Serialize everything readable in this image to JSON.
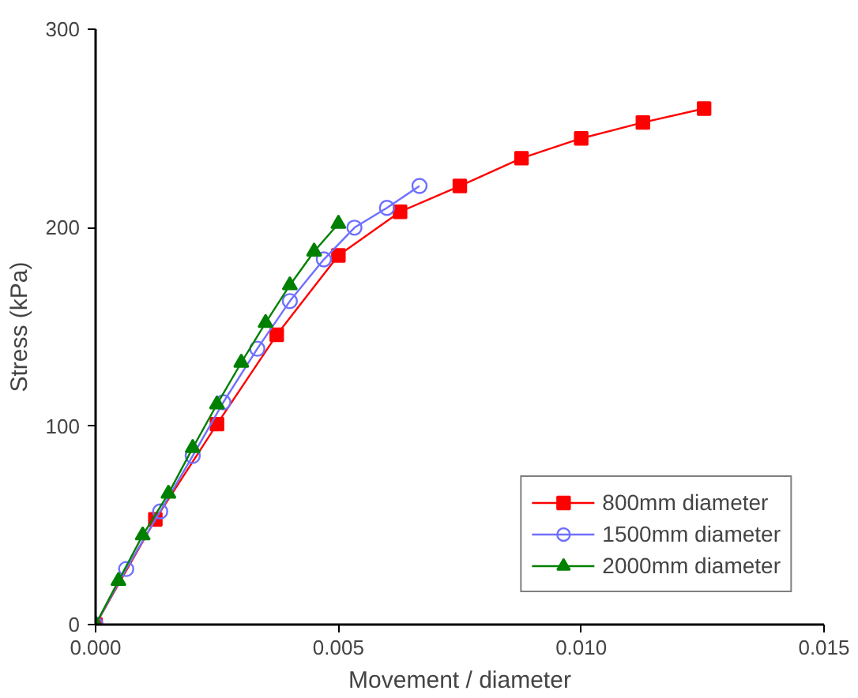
{
  "chart_data": {
    "type": "line",
    "xlabel": "Movement / diameter",
    "ylabel": "Stress (kPa)",
    "xlim": [
      0,
      0.015
    ],
    "ylim": [
      0,
      300
    ],
    "xticks": [
      {
        "value": 0,
        "label": "0.000"
      },
      {
        "value": 0.005,
        "label": "0.005"
      },
      {
        "value": 0.01,
        "label": "0.010"
      },
      {
        "value": 0.015,
        "label": "0.015"
      }
    ],
    "yticks": [
      0,
      100,
      200,
      300
    ],
    "grid": false,
    "legend": "bottom right",
    "series": [
      {
        "name": "800mm diameter",
        "color": "#ff0000",
        "marker": "square",
        "x": [
          0,
          0.00123,
          0.0025,
          0.00373,
          0.005,
          0.00627,
          0.0075,
          0.00877,
          0.01,
          0.01127,
          0.01253
        ],
        "values": [
          0,
          53,
          101,
          146,
          186,
          208,
          221,
          235,
          245,
          253,
          260
        ]
      },
      {
        "name": "1500mm diameter",
        "color": "#6f6fff",
        "marker": "circle",
        "x": [
          0,
          0.00063,
          0.00133,
          0.002,
          0.00263,
          0.00333,
          0.004,
          0.0047,
          0.00533,
          0.006,
          0.00667
        ],
        "values": [
          0,
          28,
          57,
          85,
          112,
          139,
          163,
          184,
          200,
          210,
          221
        ]
      },
      {
        "name": "2000mm diameter",
        "color": "#008000",
        "marker": "triangle",
        "x": [
          0,
          0.00047,
          0.00097,
          0.0015,
          0.002,
          0.0025,
          0.003,
          0.0035,
          0.004,
          0.0045,
          0.005
        ],
        "values": [
          0,
          22,
          45,
          66,
          89,
          111,
          132,
          152,
          171,
          188,
          202
        ]
      }
    ]
  }
}
